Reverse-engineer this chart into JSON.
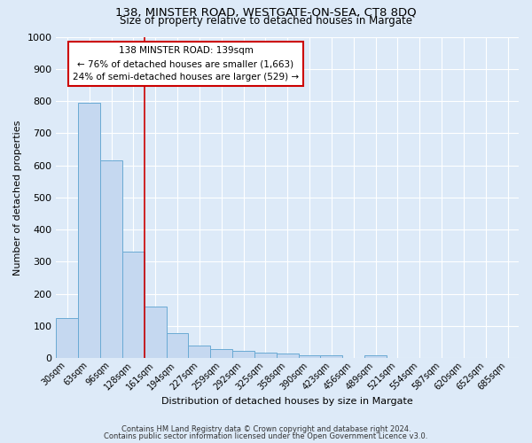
{
  "title1": "138, MINSTER ROAD, WESTGATE-ON-SEA, CT8 8DQ",
  "title2": "Size of property relative to detached houses in Margate",
  "xlabel": "Distribution of detached houses by size in Margate",
  "ylabel": "Number of detached properties",
  "categories": [
    "30sqm",
    "63sqm",
    "96sqm",
    "128sqm",
    "161sqm",
    "194sqm",
    "227sqm",
    "259sqm",
    "292sqm",
    "325sqm",
    "358sqm",
    "390sqm",
    "423sqm",
    "456sqm",
    "489sqm",
    "521sqm",
    "554sqm",
    "587sqm",
    "620sqm",
    "652sqm",
    "685sqm"
  ],
  "values": [
    125,
    795,
    615,
    330,
    160,
    78,
    38,
    27,
    22,
    18,
    13,
    8,
    8,
    0,
    10,
    0,
    0,
    0,
    0,
    0,
    0
  ],
  "bar_color": "#c5d8f0",
  "bar_edge_color": "#6aaad4",
  "bar_edge_width": 0.7,
  "background_color": "#ddeaf8",
  "plot_bg_color": "#ddeaf8",
  "grid_color": "#ffffff",
  "vline_color": "#cc0000",
  "annotation_text": "138 MINSTER ROAD: 139sqm\n← 76% of detached houses are smaller (1,663)\n24% of semi-detached houses are larger (529) →",
  "annotation_box_color": "#ffffff",
  "annotation_box_edge": "#cc0000",
  "ylim": [
    0,
    1000
  ],
  "yticks": [
    0,
    100,
    200,
    300,
    400,
    500,
    600,
    700,
    800,
    900,
    1000
  ],
  "footer1": "Contains HM Land Registry data © Crown copyright and database right 2024.",
  "footer2": "Contains public sector information licensed under the Open Government Licence v3.0."
}
